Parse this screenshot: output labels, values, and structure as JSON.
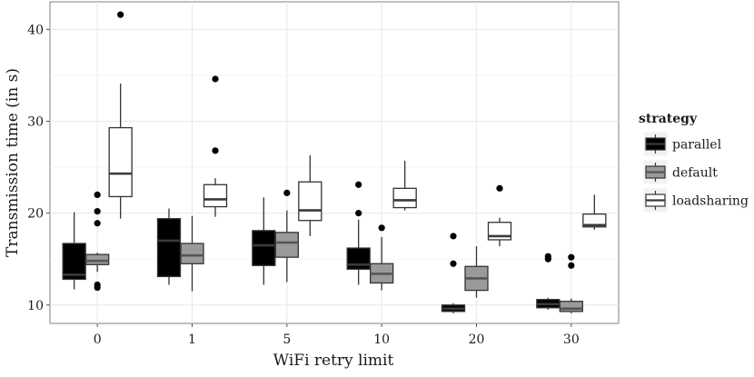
{
  "chart_data": {
    "type": "boxplot",
    "title": "",
    "xlabel": "WiFi retry limit",
    "ylabel": "Transmission time (in s)",
    "categories": [
      "0",
      "1",
      "5",
      "10",
      "20",
      "30"
    ],
    "ylim": [
      8,
      43
    ],
    "yticks": [
      10,
      20,
      30,
      40
    ],
    "grid": true,
    "legend": {
      "title": "strategy",
      "position": "right",
      "entries": [
        "parallel",
        "default",
        "loadsharing"
      ]
    },
    "colors": {
      "parallel": "#000000",
      "default": "#9a9a9a",
      "loadsharing": "#ffffff",
      "grid": "#ebebeb",
      "stroke": "#333333"
    },
    "series": [
      {
        "name": "parallel",
        "boxes": [
          {
            "min": 11.7,
            "q1": 12.8,
            "median": 13.3,
            "q3": 16.7,
            "max": 20.1,
            "outliers": []
          },
          {
            "min": 12.2,
            "q1": 13.1,
            "median": 17.0,
            "q3": 19.4,
            "max": 20.5,
            "outliers": []
          },
          {
            "min": 12.2,
            "q1": 14.3,
            "median": 16.5,
            "q3": 18.1,
            "max": 21.7,
            "outliers": []
          },
          {
            "min": 12.2,
            "q1": 13.9,
            "median": 14.4,
            "q3": 16.2,
            "max": 19.3,
            "outliers": [
              20.0,
              23.1
            ]
          },
          {
            "min": 9.1,
            "q1": 9.3,
            "median": 9.6,
            "q3": 10.0,
            "max": 10.2,
            "outliers": [
              14.5,
              17.5
            ]
          },
          {
            "min": 9.5,
            "q1": 9.7,
            "median": 10.1,
            "q3": 10.6,
            "max": 10.8,
            "outliers": [
              15.0,
              15.3
            ]
          }
        ]
      },
      {
        "name": "default",
        "boxes": [
          {
            "min": 13.6,
            "q1": 14.4,
            "median": 14.8,
            "q3": 15.5,
            "max": 15.7,
            "outliers": [
              11.9,
              12.2,
              18.9,
              20.2,
              22.0
            ]
          },
          {
            "min": 11.5,
            "q1": 14.5,
            "median": 15.4,
            "q3": 16.7,
            "max": 19.7,
            "outliers": []
          },
          {
            "min": 12.5,
            "q1": 15.2,
            "median": 16.8,
            "q3": 17.9,
            "max": 20.3,
            "outliers": [
              22.2
            ]
          },
          {
            "min": 11.6,
            "q1": 12.4,
            "median": 13.4,
            "q3": 14.5,
            "max": 17.4,
            "outliers": [
              18.4
            ]
          },
          {
            "min": 10.8,
            "q1": 11.6,
            "median": 12.9,
            "q3": 14.2,
            "max": 16.4,
            "outliers": []
          },
          {
            "min": 9.1,
            "q1": 9.3,
            "median": 9.6,
            "q3": 10.4,
            "max": 10.7,
            "outliers": [
              14.3,
              15.2
            ]
          }
        ]
      },
      {
        "name": "loadsharing",
        "boxes": [
          {
            "min": 19.4,
            "q1": 21.8,
            "median": 24.3,
            "q3": 29.3,
            "max": 34.1,
            "outliers": [
              41.6
            ]
          },
          {
            "min": 19.6,
            "q1": 20.7,
            "median": 21.5,
            "q3": 23.1,
            "max": 23.8,
            "outliers": [
              26.8,
              34.6
            ]
          },
          {
            "min": 17.5,
            "q1": 19.2,
            "median": 20.3,
            "q3": 23.4,
            "max": 26.3,
            "outliers": []
          },
          {
            "min": 20.3,
            "q1": 20.6,
            "median": 21.4,
            "q3": 22.7,
            "max": 25.7,
            "outliers": []
          },
          {
            "min": 16.4,
            "q1": 17.1,
            "median": 17.5,
            "q3": 19.0,
            "max": 19.5,
            "outliers": [
              22.7
            ]
          },
          {
            "min": 18.2,
            "q1": 18.5,
            "median": 18.7,
            "q3": 19.9,
            "max": 22.0,
            "outliers": []
          }
        ]
      }
    ]
  }
}
